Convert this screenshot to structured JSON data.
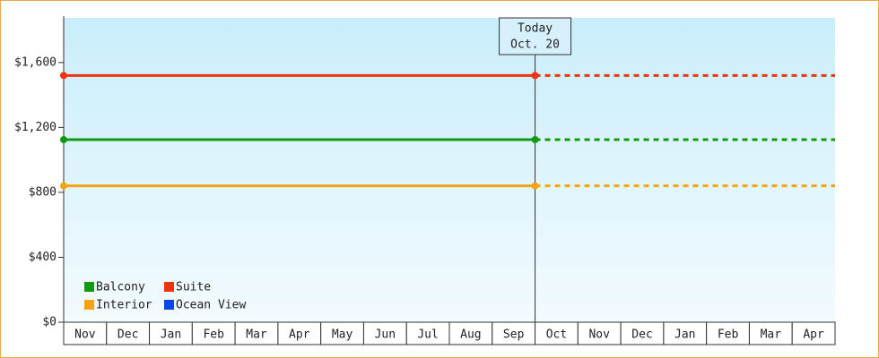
{
  "chart_data": {
    "type": "line",
    "categories": [
      "Nov",
      "Dec",
      "Jan",
      "Feb",
      "Mar",
      "Apr",
      "May",
      "Jun",
      "Jul",
      "Aug",
      "Sep",
      "Oct",
      "Nov",
      "Dec",
      "Jan",
      "Feb",
      "Mar",
      "Apr"
    ],
    "series": [
      {
        "name": "Balcony",
        "color": "#119911",
        "values": [
          1125,
          1125,
          1125,
          1125,
          1125,
          1125,
          1125,
          1125,
          1125,
          1125,
          1125,
          1125,
          null,
          null,
          null,
          null,
          null,
          null
        ]
      },
      {
        "name": "Suite",
        "color": "#ee3311",
        "values": [
          1520,
          1520,
          1520,
          1520,
          1520,
          1520,
          1520,
          1520,
          1520,
          1520,
          1520,
          1520,
          null,
          null,
          null,
          null,
          null,
          null
        ]
      },
      {
        "name": "Interior",
        "color": "#f5a311",
        "values": [
          840,
          840,
          840,
          840,
          840,
          840,
          840,
          840,
          840,
          840,
          840,
          840,
          null,
          null,
          null,
          null,
          null,
          null
        ]
      },
      {
        "name": "Ocean View",
        "color": "#0a47e8",
        "values": [
          null,
          null,
          null,
          null,
          null,
          null,
          null,
          null,
          null,
          null,
          null,
          null,
          null,
          null,
          null,
          null,
          null,
          null
        ]
      }
    ],
    "annotations": [
      "Today",
      "Oct. 20"
    ],
    "ylim": [
      0,
      1875
    ],
    "yticks": [
      {
        "value": 0,
        "label": "$0"
      },
      {
        "value": 400,
        "label": "$400"
      },
      {
        "value": 800,
        "label": "$800"
      },
      {
        "value": 1200,
        "label": "$1,200"
      },
      {
        "value": 1600,
        "label": "$1,600"
      }
    ],
    "legend": "bottom-left"
  }
}
